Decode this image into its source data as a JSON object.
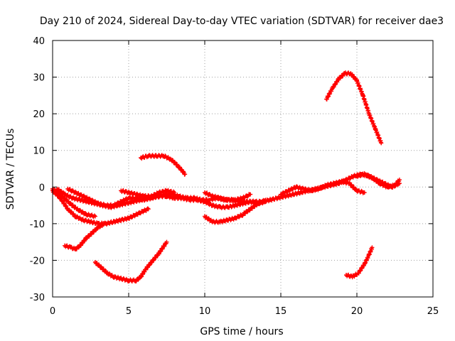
{
  "chart_data": {
    "type": "scatter",
    "title": "Day 210 of 2024, Sidereal Day-to-day VTEC variation (SDTVAR) for receiver dae3",
    "xlabel": "GPS time / hours",
    "ylabel": "SDTVAR / TECUs",
    "xlim": [
      0,
      25
    ],
    "ylim": [
      -30,
      40
    ],
    "x_ticks": [
      0,
      5,
      10,
      15,
      20,
      25
    ],
    "y_ticks": [
      -30,
      -20,
      -10,
      0,
      10,
      20,
      30,
      40
    ],
    "grid": true,
    "legend": "none",
    "marker": "+",
    "color": "#ff0000",
    "series": [
      {
        "name": "track-01",
        "points": [
          [
            0.0,
            -0.5
          ],
          [
            0.5,
            -2
          ],
          [
            1.0,
            -4
          ],
          [
            1.6,
            -6
          ],
          [
            2.2,
            -7.5
          ],
          [
            2.8,
            -8
          ]
        ]
      },
      {
        "name": "track-02",
        "points": [
          [
            0.0,
            -1
          ],
          [
            0.5,
            -3
          ],
          [
            1.0,
            -6
          ],
          [
            1.5,
            -8
          ],
          [
            2.0,
            -9
          ],
          [
            2.5,
            -9.5
          ],
          [
            3.0,
            -10
          ],
          [
            3.5,
            -10
          ],
          [
            4.0,
            -9.5
          ],
          [
            4.5,
            -9
          ],
          [
            5.0,
            -8.5
          ],
          [
            5.5,
            -7.5
          ],
          [
            6.0,
            -6.5
          ],
          [
            6.3,
            -6
          ]
        ]
      },
      {
        "name": "track-03",
        "points": [
          [
            0.3,
            -0.5
          ],
          [
            0.8,
            -2
          ],
          [
            1.3,
            -3
          ],
          [
            1.8,
            -3.5
          ],
          [
            2.3,
            -4
          ],
          [
            2.8,
            -4.5
          ],
          [
            3.3,
            -5
          ],
          [
            3.8,
            -5.5
          ],
          [
            4.3,
            -5
          ],
          [
            4.8,
            -4.5
          ],
          [
            5.3,
            -4
          ],
          [
            5.8,
            -3.5
          ],
          [
            6.3,
            -3
          ],
          [
            6.8,
            -2.5
          ],
          [
            7.3,
            -2
          ],
          [
            7.8,
            -2
          ],
          [
            8.3,
            -2.5
          ],
          [
            8.8,
            -3
          ],
          [
            9.3,
            -3
          ],
          [
            9.8,
            -3.5
          ],
          [
            10.3,
            -3.5
          ],
          [
            10.8,
            -3
          ],
          [
            11.3,
            -3.5
          ],
          [
            11.8,
            -3.5
          ],
          [
            12.3,
            -4
          ],
          [
            12.8,
            -4
          ],
          [
            13.3,
            -4
          ],
          [
            13.8,
            -4
          ],
          [
            14.3,
            -3.5
          ],
          [
            14.8,
            -3
          ],
          [
            15.3,
            -2.5
          ],
          [
            15.8,
            -2
          ],
          [
            16.3,
            -1.5
          ],
          [
            16.8,
            -1
          ],
          [
            17.3,
            -0.5
          ],
          [
            17.8,
            0
          ],
          [
            18.3,
            0.5
          ],
          [
            18.8,
            1
          ],
          [
            19.3,
            2
          ],
          [
            19.8,
            3
          ],
          [
            20.3,
            3.5
          ],
          [
            20.8,
            3
          ],
          [
            21.3,
            2
          ],
          [
            21.8,
            1
          ],
          [
            22.3,
            0
          ],
          [
            22.8,
            1
          ]
        ]
      },
      {
        "name": "track-04",
        "points": [
          [
            1.0,
            -0.5
          ],
          [
            1.5,
            -1.5
          ],
          [
            2.0,
            -2.5
          ],
          [
            2.5,
            -3.5
          ],
          [
            3.0,
            -4.5
          ],
          [
            3.5,
            -5
          ],
          [
            4.0,
            -5
          ],
          [
            4.5,
            -4
          ],
          [
            5.0,
            -3
          ],
          [
            5.5,
            -3
          ],
          [
            6.0,
            -3.5
          ],
          [
            6.5,
            -3
          ],
          [
            7.0,
            -2.5
          ],
          [
            7.5,
            -2.5
          ],
          [
            8.0,
            -3
          ],
          [
            8.5,
            -3
          ],
          [
            9.0,
            -3.5
          ],
          [
            9.5,
            -3.5
          ],
          [
            10.0,
            -4
          ],
          [
            10.5,
            -5
          ],
          [
            11.0,
            -5.5
          ],
          [
            11.5,
            -5.5
          ],
          [
            12.0,
            -5
          ],
          [
            12.5,
            -4.5
          ],
          [
            13.0,
            -4
          ],
          [
            13.5,
            -4.5
          ],
          [
            14.0,
            -4
          ]
        ]
      },
      {
        "name": "track-05",
        "points": [
          [
            4.5,
            -1
          ],
          [
            5.0,
            -1.5
          ],
          [
            5.5,
            -2
          ],
          [
            6.0,
            -2.5
          ],
          [
            6.5,
            -2.5
          ],
          [
            7.0,
            -1.5
          ],
          [
            7.5,
            -1
          ],
          [
            8.0,
            -1.5
          ]
        ]
      },
      {
        "name": "track-06",
        "points": [
          [
            10.0,
            -1.5
          ],
          [
            10.5,
            -2.5
          ],
          [
            11.0,
            -3
          ],
          [
            11.5,
            -3.5
          ],
          [
            12.0,
            -3.5
          ],
          [
            12.5,
            -3
          ],
          [
            13.0,
            -2
          ]
        ]
      },
      {
        "name": "track-07",
        "points": [
          [
            15.0,
            -2
          ],
          [
            15.5,
            -1
          ],
          [
            16.0,
            0
          ],
          [
            16.5,
            -0.5
          ],
          [
            17.0,
            -1
          ],
          [
            17.5,
            -0.5
          ],
          [
            18.0,
            0.5
          ],
          [
            18.5,
            1
          ],
          [
            19.0,
            1.5
          ],
          [
            19.5,
            1
          ],
          [
            20.0,
            -1
          ],
          [
            20.5,
            -1.5
          ]
        ]
      },
      {
        "name": "track-08",
        "points": [
          [
            20.0,
            3
          ],
          [
            20.5,
            3.5
          ],
          [
            21.0,
            2.5
          ],
          [
            21.5,
            1
          ],
          [
            22.0,
            0
          ],
          [
            22.5,
            0.5
          ],
          [
            22.8,
            2
          ]
        ]
      },
      {
        "name": "track-09",
        "points": [
          [
            10.0,
            -8
          ],
          [
            10.5,
            -9.5
          ],
          [
            11.0,
            -9.5
          ],
          [
            11.5,
            -9
          ],
          [
            12.0,
            -8.5
          ],
          [
            12.5,
            -7.5
          ],
          [
            13.0,
            -6
          ],
          [
            13.5,
            -4.5
          ],
          [
            14.0,
            -3.5
          ]
        ]
      },
      {
        "name": "track-10",
        "points": [
          [
            0.8,
            -16
          ],
          [
            1.2,
            -16.5
          ],
          [
            1.5,
            -17
          ],
          [
            1.8,
            -16
          ],
          [
            2.2,
            -14
          ],
          [
            2.6,
            -12.5
          ],
          [
            3.0,
            -11
          ],
          [
            3.4,
            -10
          ]
        ]
      },
      {
        "name": "track-11",
        "points": [
          [
            2.8,
            -20.5
          ],
          [
            3.2,
            -22
          ],
          [
            3.6,
            -23.5
          ],
          [
            4.0,
            -24.5
          ],
          [
            4.5,
            -25
          ],
          [
            5.0,
            -25.5
          ],
          [
            5.5,
            -25.5
          ],
          [
            5.8,
            -24.5
          ],
          [
            6.1,
            -22.5
          ],
          [
            6.5,
            -20.5
          ],
          [
            7.0,
            -18
          ],
          [
            7.5,
            -15
          ]
        ]
      },
      {
        "name": "track-12",
        "points": [
          [
            5.8,
            8
          ],
          [
            6.3,
            8.5
          ],
          [
            6.8,
            8.5
          ],
          [
            7.3,
            8.5
          ],
          [
            7.8,
            7.5
          ],
          [
            8.3,
            5.5
          ],
          [
            8.7,
            3.5
          ]
        ]
      },
      {
        "name": "track-13",
        "points": [
          [
            18.0,
            24
          ],
          [
            18.4,
            27
          ],
          [
            18.8,
            29.5
          ],
          [
            19.2,
            31
          ],
          [
            19.6,
            31
          ],
          [
            20.0,
            29
          ],
          [
            20.4,
            25
          ],
          [
            20.8,
            20
          ],
          [
            21.2,
            16
          ],
          [
            21.6,
            12
          ]
        ]
      },
      {
        "name": "track-14",
        "points": [
          [
            19.3,
            -24
          ],
          [
            19.7,
            -24.5
          ],
          [
            20.1,
            -23.5
          ],
          [
            20.5,
            -21
          ],
          [
            20.8,
            -18.5
          ],
          [
            21.0,
            -16.5
          ]
        ]
      }
    ]
  }
}
